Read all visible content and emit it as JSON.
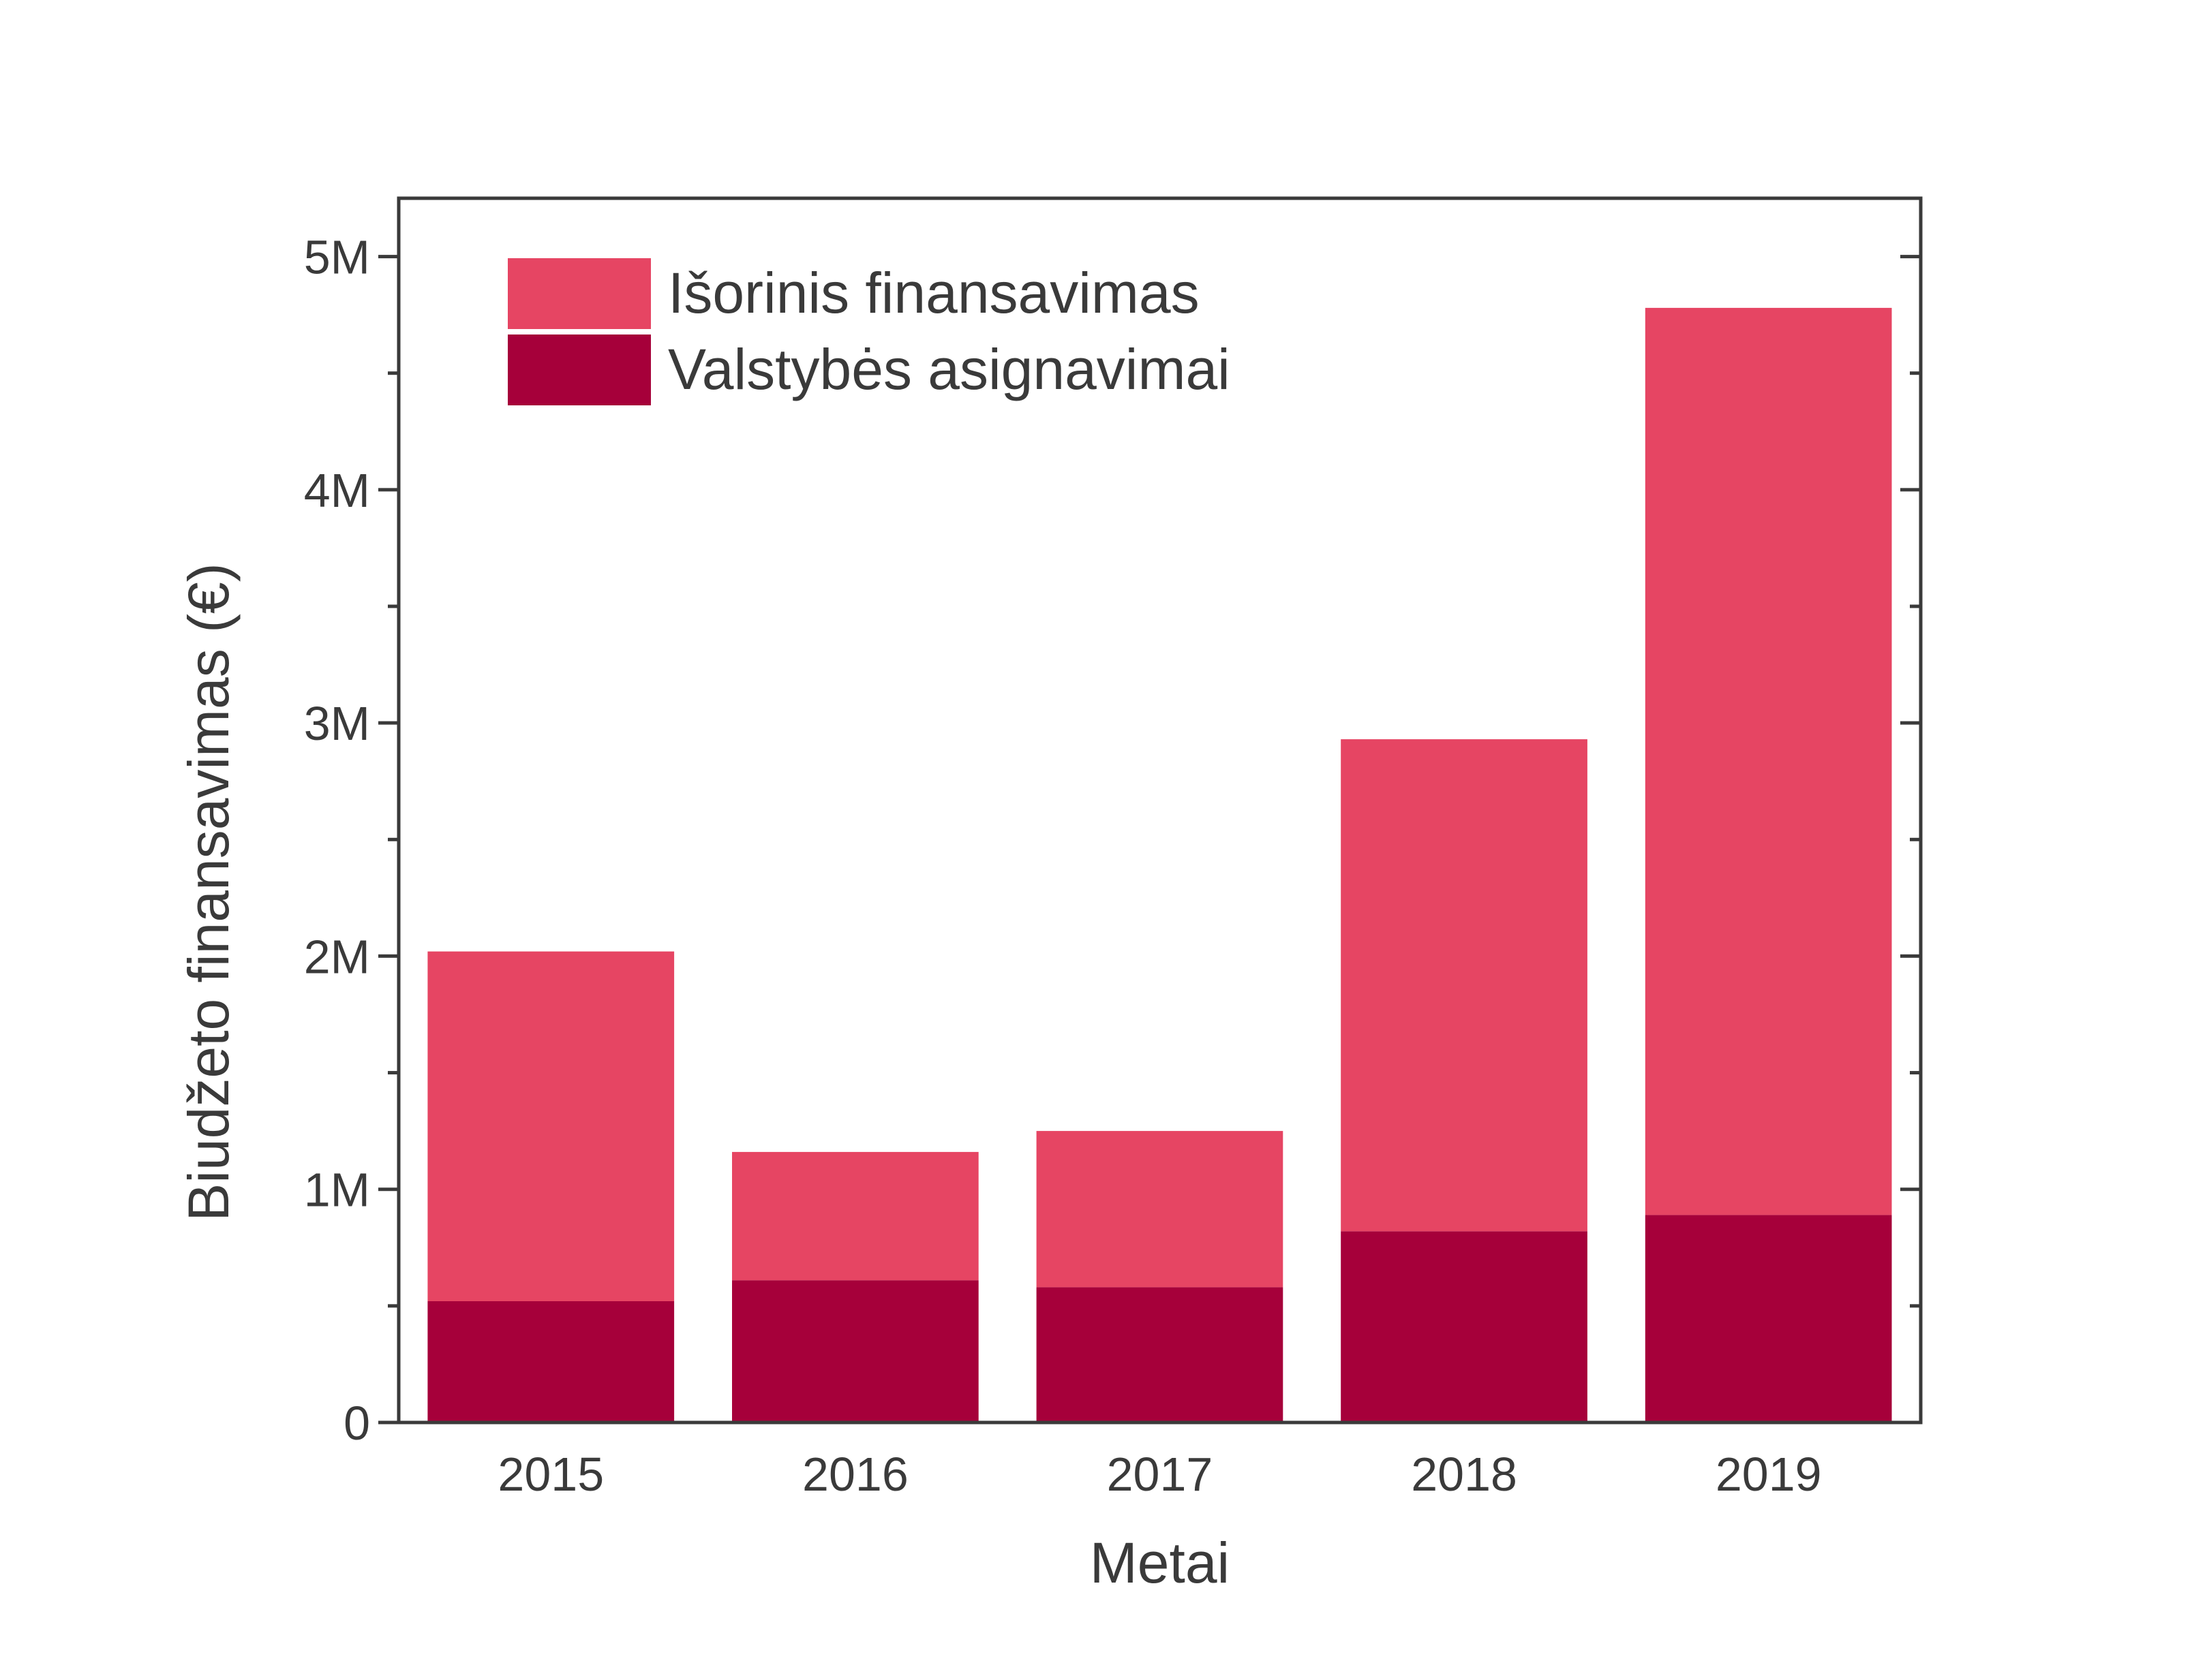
{
  "chart_data": {
    "type": "bar",
    "stacked": true,
    "title": "",
    "xlabel": "Metai",
    "ylabel": "Biudžeto finansavimas (€)",
    "categories": [
      "2015",
      "2016",
      "2017",
      "2018",
      "2019"
    ],
    "series": [
      {
        "name": "Valstybės asignavimai",
        "color": "#a6003a",
        "values": [
          520000,
          610000,
          580000,
          820000,
          890000
        ]
      },
      {
        "name": "Išorinis finansavimas",
        "color": "#e64563",
        "values": [
          1500000,
          550000,
          670000,
          2110000,
          3890000
        ]
      }
    ],
    "ylim": [
      0,
      5250000
    ],
    "yticks": [
      0,
      1000000,
      2000000,
      3000000,
      4000000,
      5000000
    ],
    "ytick_labels": [
      "0",
      "1M",
      "2M",
      "3M",
      "4M",
      "5M"
    ],
    "grid": false,
    "legend": {
      "position": "top-left",
      "entries": [
        "Išorinis finansavimas",
        "Valstybės asignavimai"
      ]
    },
    "colors": {
      "axis": "#3a3a3a",
      "text": "#3a3a3a"
    }
  }
}
